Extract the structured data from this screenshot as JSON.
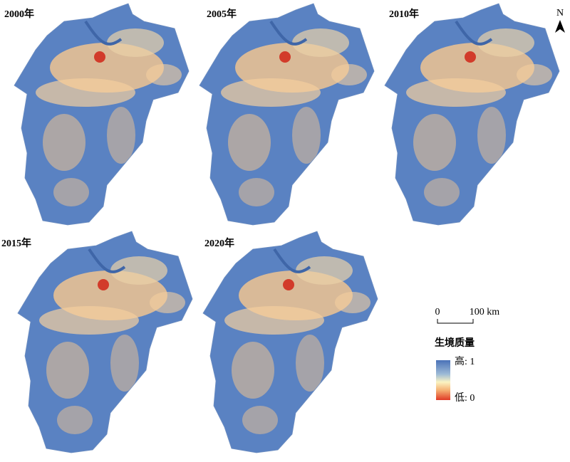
{
  "panels": [
    {
      "label": "2000年"
    },
    {
      "label": "2005年"
    },
    {
      "label": "2010年"
    },
    {
      "label": "2015年"
    },
    {
      "label": "2020年"
    }
  ],
  "north_arrow": "N",
  "scale_bar": {
    "start": "0",
    "end": "100 km"
  },
  "legend": {
    "title": "生境质量",
    "high": "高: 1",
    "low": "低: 0"
  }
}
